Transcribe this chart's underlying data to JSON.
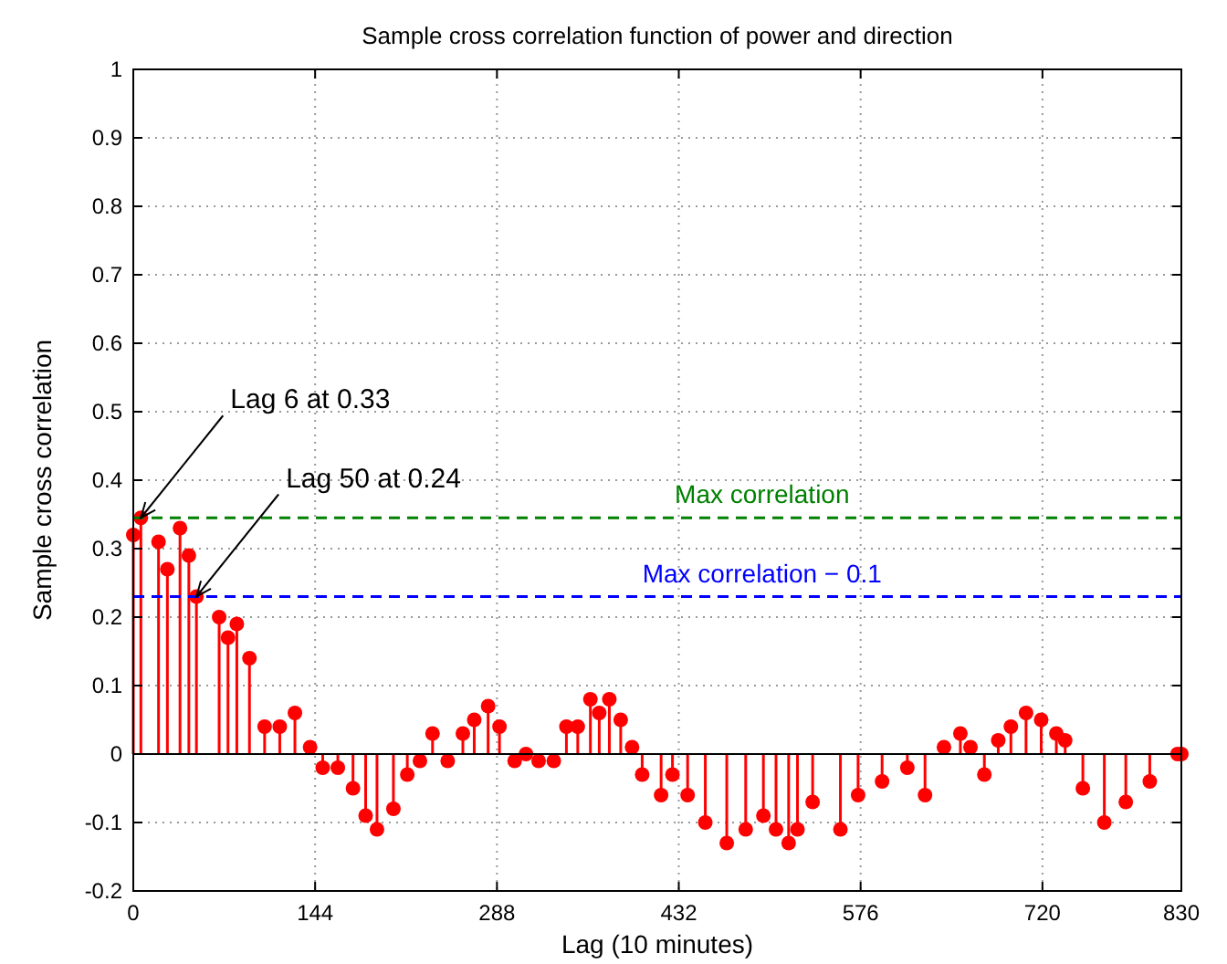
{
  "chart_data": {
    "type": "lollipop",
    "title": "Sample cross correlation function of power and direction",
    "xlabel": "Lag (10 minutes)",
    "ylabel": "Sample cross correlation",
    "x": [
      0,
      6,
      20,
      27,
      37,
      44,
      50,
      68,
      75,
      82,
      92,
      104,
      116,
      128,
      140,
      150,
      162,
      174,
      184,
      193,
      206,
      217,
      227,
      237,
      249,
      261,
      270,
      281,
      290,
      302,
      311,
      321,
      333,
      343,
      352,
      362,
      369,
      377,
      386,
      395,
      403,
      418,
      427,
      439,
      453,
      470,
      485,
      499,
      509,
      519,
      526,
      538,
      560,
      574,
      593,
      613,
      627,
      642,
      655,
      663,
      674,
      685,
      695,
      707,
      719,
      731,
      738,
      752,
      769,
      786,
      805,
      827,
      830
    ],
    "series": [
      {
        "color": "#ff0000",
        "values": [
          0.32,
          0.345,
          0.31,
          0.27,
          0.33,
          0.29,
          0.23,
          0.2,
          0.17,
          0.19,
          0.14,
          0.04,
          0.04,
          0.06,
          0.01,
          -0.02,
          -0.02,
          -0.05,
          -0.09,
          -0.11,
          -0.08,
          -0.03,
          -0.01,
          0.03,
          -0.01,
          0.03,
          0.05,
          0.07,
          0.04,
          -0.01,
          0.0,
          -0.01,
          -0.01,
          0.04,
          0.04,
          0.08,
          0.06,
          0.08,
          0.05,
          0.01,
          -0.03,
          -0.06,
          -0.03,
          -0.06,
          -0.1,
          -0.13,
          -0.11,
          -0.09,
          -0.11,
          -0.13,
          -0.11,
          -0.07,
          -0.11,
          -0.06,
          -0.04,
          -0.02,
          -0.06,
          0.01,
          0.03,
          0.01,
          -0.03,
          0.02,
          0.04,
          0.06,
          0.05,
          0.03,
          0.02,
          -0.05,
          -0.1,
          -0.07,
          -0.04,
          0.0,
          0.0
        ]
      }
    ],
    "xlim": [
      0,
      830
    ],
    "xticks": [
      0,
      144,
      288,
      432,
      576,
      720,
      830
    ],
    "ylim": [
      -0.2,
      1
    ],
    "yticks": [
      -0.2,
      -0.1,
      0,
      0.1,
      0.2,
      0.3,
      0.4,
      0.5,
      0.6,
      0.7,
      0.8,
      0.9,
      1
    ],
    "grid": true,
    "marker": "circle",
    "ref_lines": [
      {
        "axis": "y",
        "value": 0.345,
        "label": "Max correlation",
        "color": "#008000",
        "line_style": "dashed"
      },
      {
        "axis": "y",
        "value": 0.23,
        "label": "Max correlation − 0.1",
        "color": "#0000ff",
        "line_style": "dashed"
      }
    ],
    "annotations": [
      {
        "text": "Lag 6 at 0.33",
        "x": 6,
        "y": 0.345
      },
      {
        "text": "Lag 50 at 0.24",
        "x": 50,
        "y": 0.23
      }
    ]
  }
}
